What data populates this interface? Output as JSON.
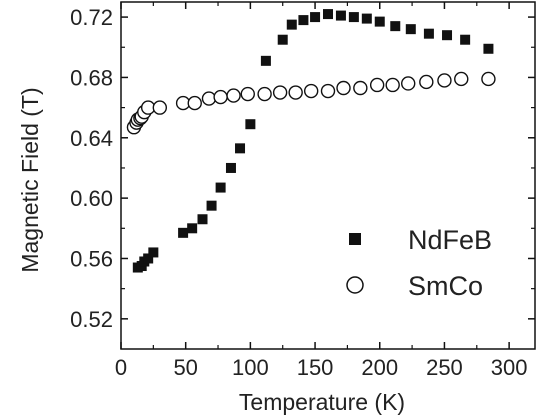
{
  "chart_data": {
    "type": "scatter",
    "xlabel": "Temperature (K)",
    "ylabel": "Magnetic Field (T)",
    "xlim": [
      0,
      320
    ],
    "ylim": [
      0.5,
      0.73
    ],
    "xticks": [
      "0",
      "50",
      "100",
      "150",
      "200",
      "250",
      "300"
    ],
    "yticks": [
      "0.52",
      "0.56",
      "0.60",
      "0.64",
      "0.68",
      "0.72"
    ],
    "legend_placement": "lower-right",
    "series": [
      {
        "name": "NdFeB",
        "marker": "filled-square",
        "color": "#111111",
        "points": [
          {
            "x": 13,
            "y": 0.554
          },
          {
            "x": 16,
            "y": 0.555
          },
          {
            "x": 18,
            "y": 0.558
          },
          {
            "x": 21,
            "y": 0.56
          },
          {
            "x": 25,
            "y": 0.564
          },
          {
            "x": 48,
            "y": 0.577
          },
          {
            "x": 55,
            "y": 0.58
          },
          {
            "x": 63,
            "y": 0.586
          },
          {
            "x": 70,
            "y": 0.595
          },
          {
            "x": 77,
            "y": 0.607
          },
          {
            "x": 85,
            "y": 0.62
          },
          {
            "x": 92,
            "y": 0.633
          },
          {
            "x": 100,
            "y": 0.649
          },
          {
            "x": 112,
            "y": 0.691
          },
          {
            "x": 125,
            "y": 0.705
          },
          {
            "x": 132,
            "y": 0.715
          },
          {
            "x": 141,
            "y": 0.718
          },
          {
            "x": 150,
            "y": 0.72
          },
          {
            "x": 160,
            "y": 0.722
          },
          {
            "x": 170,
            "y": 0.721
          },
          {
            "x": 180,
            "y": 0.72
          },
          {
            "x": 190,
            "y": 0.719
          },
          {
            "x": 200,
            "y": 0.717
          },
          {
            "x": 212,
            "y": 0.714
          },
          {
            "x": 224,
            "y": 0.712
          },
          {
            "x": 238,
            "y": 0.709
          },
          {
            "x": 252,
            "y": 0.708
          },
          {
            "x": 266,
            "y": 0.705
          },
          {
            "x": 284,
            "y": 0.699
          }
        ]
      },
      {
        "name": "SmCo",
        "marker": "open-circle",
        "color": "#111111",
        "points": [
          {
            "x": 10,
            "y": 0.647
          },
          {
            "x": 12,
            "y": 0.65
          },
          {
            "x": 13,
            "y": 0.652
          },
          {
            "x": 15,
            "y": 0.653
          },
          {
            "x": 16,
            "y": 0.654
          },
          {
            "x": 18,
            "y": 0.657
          },
          {
            "x": 21,
            "y": 0.66
          },
          {
            "x": 30,
            "y": 0.66
          },
          {
            "x": 48,
            "y": 0.663
          },
          {
            "x": 57,
            "y": 0.663
          },
          {
            "x": 68,
            "y": 0.666
          },
          {
            "x": 77,
            "y": 0.667
          },
          {
            "x": 87,
            "y": 0.668
          },
          {
            "x": 98,
            "y": 0.669
          },
          {
            "x": 111,
            "y": 0.669
          },
          {
            "x": 123,
            "y": 0.67
          },
          {
            "x": 135,
            "y": 0.67
          },
          {
            "x": 147,
            "y": 0.671
          },
          {
            "x": 160,
            "y": 0.671
          },
          {
            "x": 172,
            "y": 0.673
          },
          {
            "x": 185,
            "y": 0.673
          },
          {
            "x": 198,
            "y": 0.675
          },
          {
            "x": 210,
            "y": 0.675
          },
          {
            "x": 222,
            "y": 0.676
          },
          {
            "x": 236,
            "y": 0.677
          },
          {
            "x": 250,
            "y": 0.678
          },
          {
            "x": 263,
            "y": 0.679
          },
          {
            "x": 284,
            "y": 0.679
          }
        ]
      }
    ]
  }
}
